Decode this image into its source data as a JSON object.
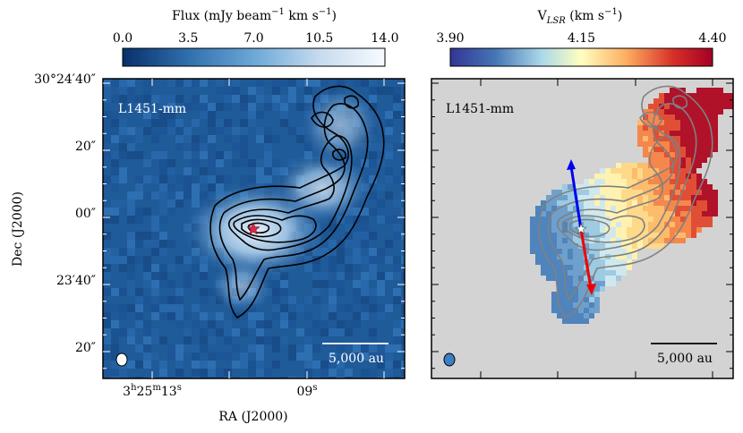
{
  "figure": {
    "left_panel": {
      "label": "L1451-mm",
      "colorbar": {
        "label_main": "Flux (mJy beam",
        "label_exp": "−1",
        "label_tail": " km s",
        "label_exp2": "−1",
        "label_close": ")",
        "ticks": [
          "0.0",
          "3.5",
          "7.0",
          "10.5",
          "14.0"
        ],
        "colormap": [
          "#08306b",
          "#2f6fae",
          "#6ba8d6",
          "#c6dbef",
          "#f7fbff"
        ]
      },
      "scalebar": "5,000 au",
      "y_ticks": [
        {
          "deg": "30°24′40″",
          "main": "30°24′40″"
        },
        {
          "main": "20″"
        },
        {
          "main": "00″"
        },
        {
          "main": "23′40″"
        },
        {
          "main": "20″"
        }
      ],
      "x_ticks": [
        {
          "h": "3",
          "hs": "h",
          "m": "25",
          "ms": "m",
          "s": "13",
          "ss": "s"
        },
        {
          "s": "09",
          "ss": "s"
        }
      ],
      "xlabel": "RA (J2000)",
      "ylabel": "Dec (J2000)",
      "colors": {
        "background": "#1f5a99",
        "star": "#e0284a",
        "contour": "#000000"
      }
    },
    "right_panel": {
      "label": "L1451-mm",
      "colorbar": {
        "label_main": "V",
        "label_sub": "LSR",
        "label_tail": " (km s",
        "label_exp": "−1",
        "label_close": ")",
        "ticks": [
          "3.90",
          "4.15",
          "4.40"
        ],
        "colormap": [
          "#313695",
          "#4575b4",
          "#abd9e9",
          "#ffffbf",
          "#fdae61",
          "#d73027",
          "#a50026"
        ]
      },
      "scalebar": "5,000 au",
      "colors": {
        "background": "#d3d3d3",
        "contour": "#808080",
        "blue_arrow": "#0000ee",
        "red_arrow": "#ee0000"
      }
    }
  }
}
